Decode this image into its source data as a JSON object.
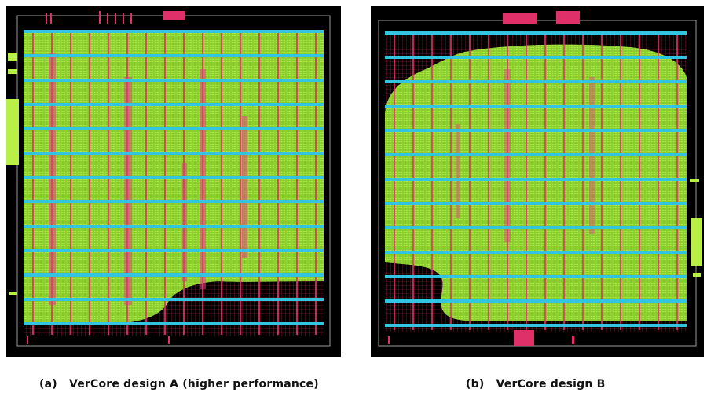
{
  "figure": {
    "panels": [
      {
        "id": "a",
        "subfigure_label": "(a)",
        "caption": "VerCore design A (higher performance)",
        "colors": {
          "background": "#000000",
          "power_rails": "#33c4e0",
          "routing_red": "#d8305a",
          "cells_green": "#a6e23a"
        }
      },
      {
        "id": "b",
        "subfigure_label": "(b)",
        "caption": "VerCore design B",
        "colors": {
          "background": "#000000",
          "power_rails": "#33c4e0",
          "routing_red": "#d8305a",
          "cells_green": "#a6e23a"
        }
      }
    ]
  }
}
